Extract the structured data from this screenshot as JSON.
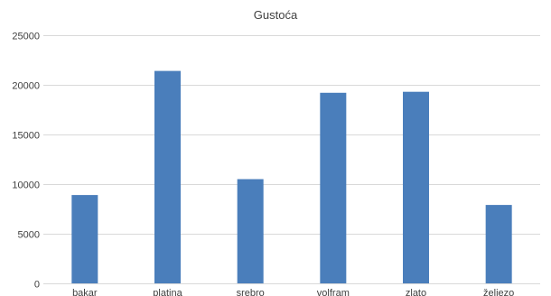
{
  "chart_data": {
    "type": "bar",
    "title": "Gustoća",
    "xlabel": "",
    "ylabel": "",
    "categories": [
      "bakar",
      "platina",
      "srebro",
      "volfram",
      "zlato",
      "željezo"
    ],
    "values": [
      8900,
      21400,
      10500,
      19200,
      19300,
      7900
    ],
    "ylim": [
      0,
      25000
    ],
    "yticks": [
      0,
      5000,
      10000,
      15000,
      20000,
      25000
    ],
    "grid": true,
    "legend": "none",
    "bar_color": "#4a7ebb"
  }
}
